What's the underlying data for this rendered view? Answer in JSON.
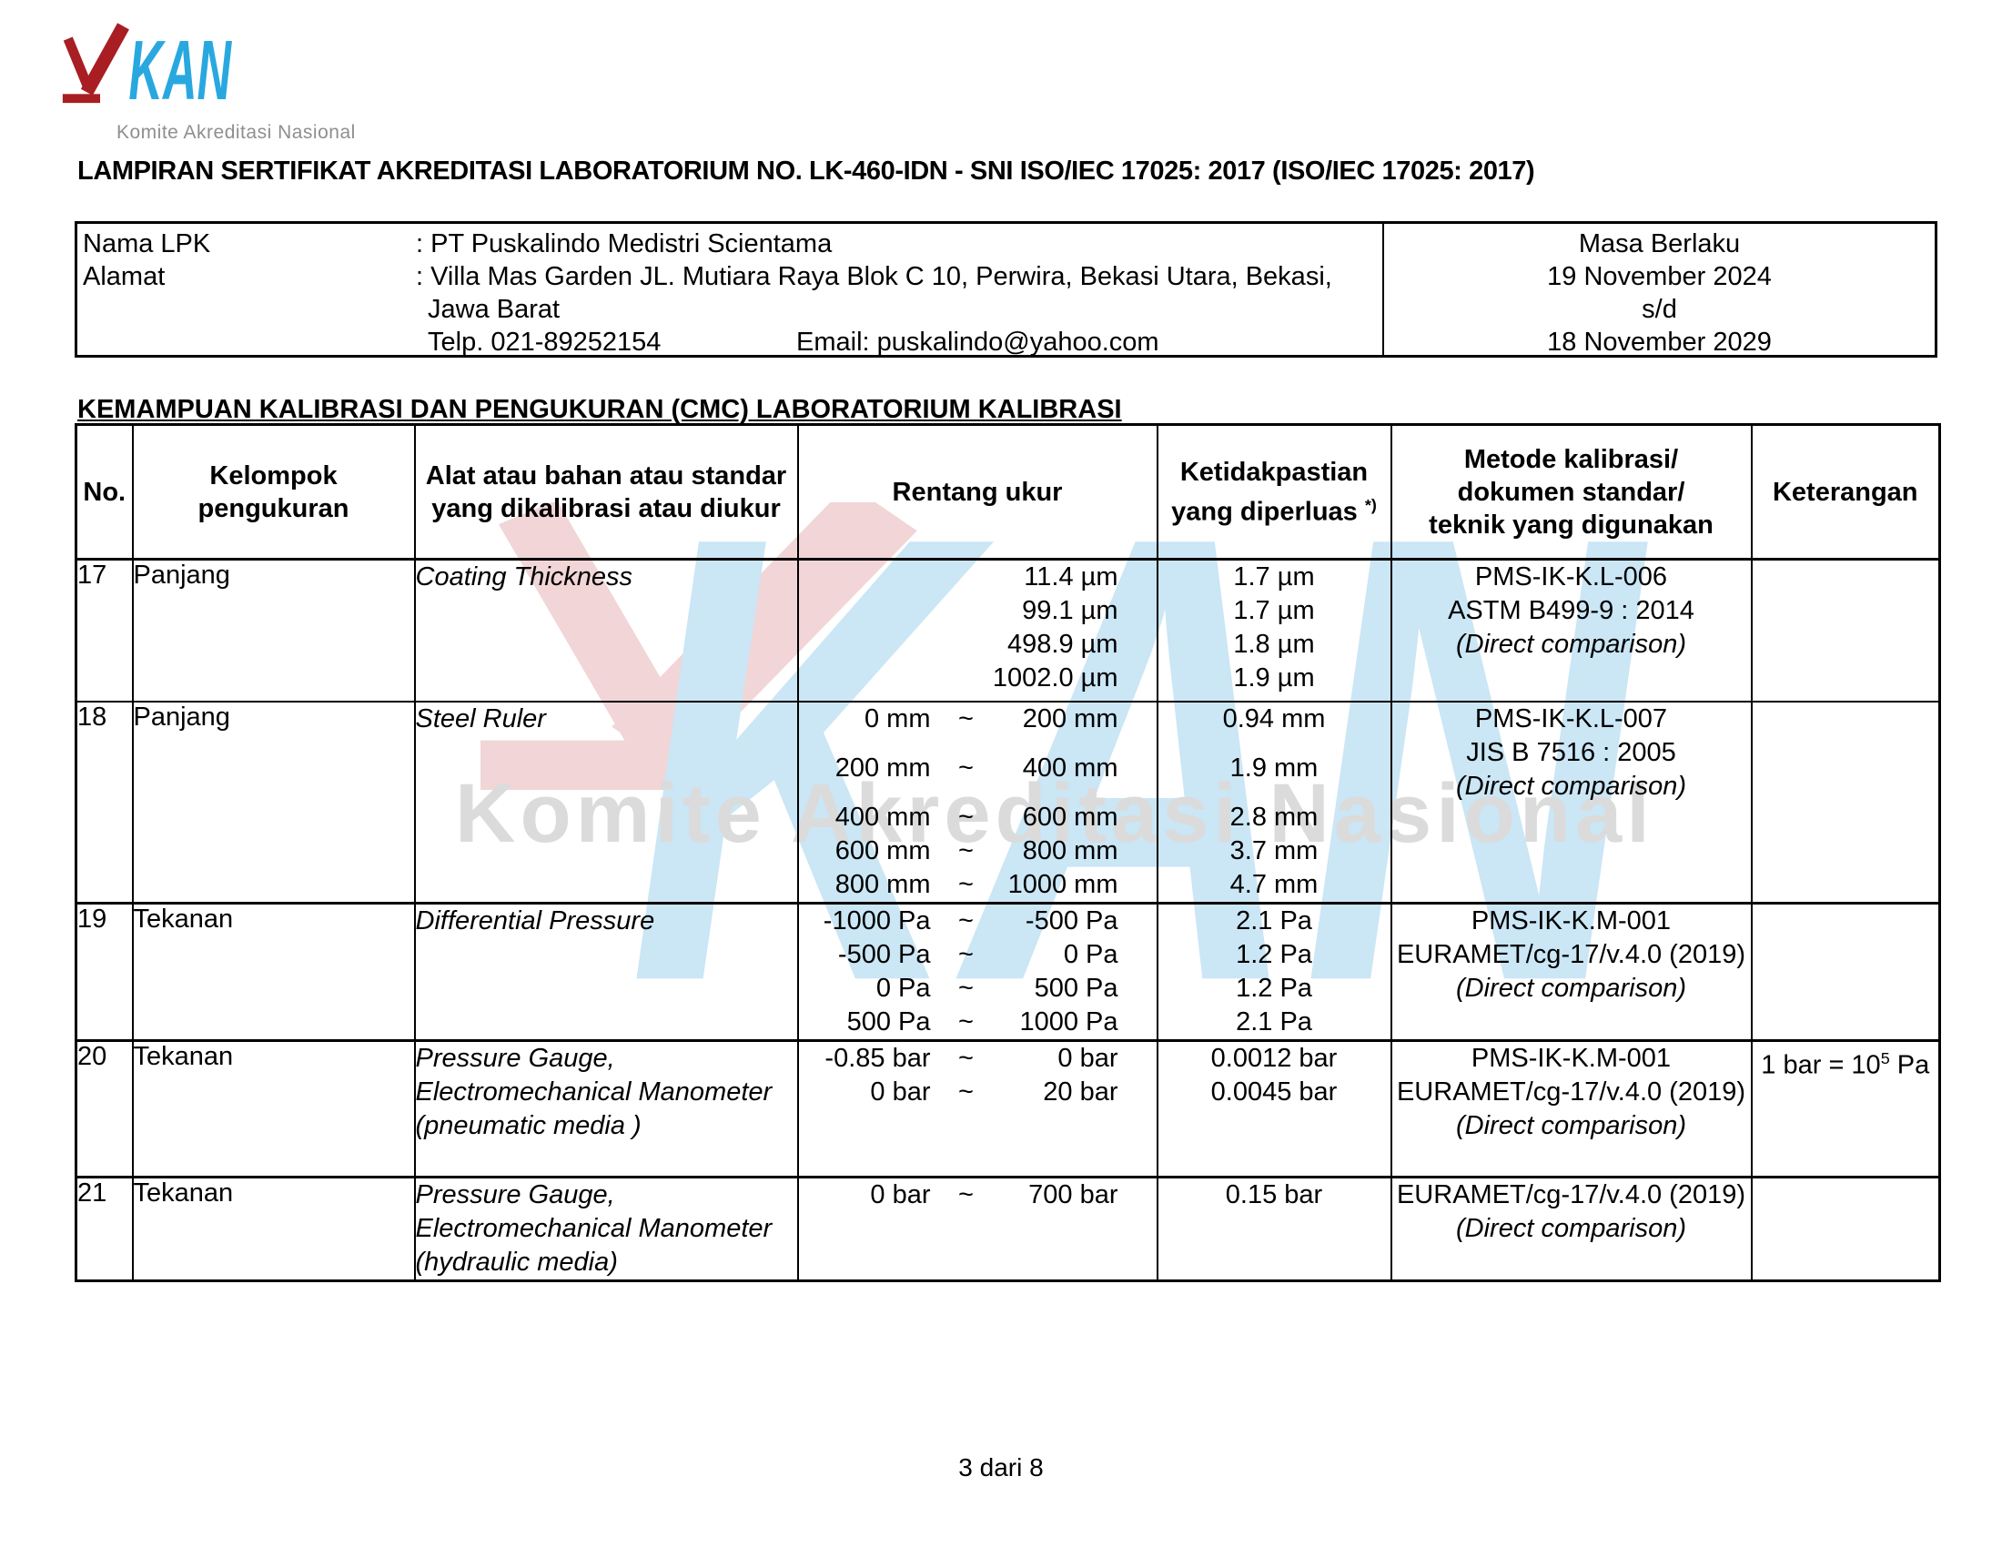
{
  "logo": {
    "kan": "KAN",
    "subtitle": "Komite Akreditasi Nasional"
  },
  "title": "LAMPIRAN SERTIFIKAT AKREDITASI LABORATORIUM NO. LK-460-IDN - SNI ISO/IEC 17025: 2017 (ISO/IEC 17025: 2017)",
  "info_box": {
    "nama_lpk_label": "Nama LPK",
    "nama_lpk_value": ": PT Puskalindo Medistri Scientama",
    "alamat_label": "Alamat",
    "alamat_value": ": Villa Mas Garden JL. Mutiara Raya Blok C 10, Perwira, Bekasi Utara, Bekasi,",
    "alamat_line2": "Jawa Barat",
    "telp": "Telp. 021-89252154",
    "email": "Email: puskalindo@yahoo.com",
    "masa_berlaku_label": "Masa Berlaku",
    "valid_from": "19 November 2024",
    "sd": "s/d",
    "valid_to": "18 November 2029"
  },
  "section_heading": "KEMAMPUAN KALIBRASI DAN PENGUKURAN (CMC) LABORATORIUM KALIBRASI",
  "watermark": {
    "kan": "KAN",
    "subtitle": "Komite Akreditasi Nasional"
  },
  "table": {
    "headers": {
      "no": "No.",
      "kelompok": [
        "Kelompok",
        "pengukuran"
      ],
      "alat": [
        "Alat atau bahan atau standar",
        "yang dikalibrasi atau diukur"
      ],
      "rentang": "Rentang ukur",
      "ketidakpastian": {
        "lines": [
          "Ketidakpastian",
          "yang diperluas"
        ],
        "sup": "*)"
      },
      "metode": [
        "Metode kalibrasi/",
        "dokumen standar/",
        "teknik yang digunakan"
      ],
      "keterangan": "Keterangan"
    },
    "rows": [
      {
        "no": "17",
        "kelompok": "Panjang",
        "alat": [
          "Coating Thickness"
        ],
        "rentang": [
          {
            "single": "11.4 µm"
          },
          {
            "single": "99.1 µm"
          },
          {
            "single": "498.9 µm"
          },
          {
            "single": "1002.0 µm"
          }
        ],
        "ketidakpastian": [
          "1.7 µm",
          "1.7 µm",
          "1.8 µm",
          "1.9 µm"
        ],
        "metode": [
          {
            "text": "PMS-IK-K.L-006"
          },
          {
            "text": "ASTM B499-9 : 2014"
          },
          {
            "text": "(Direct comparison)",
            "italic": true
          }
        ],
        "keterangan": null
      },
      {
        "no": "18",
        "kelompok": "Panjang",
        "alat": [
          "Steel Ruler"
        ],
        "rentang": [
          {
            "from": "0 mm",
            "to": "200 mm"
          },
          {
            "from": "200 mm",
            "to": "400 mm"
          },
          {
            "from": "400 mm",
            "to": "600 mm"
          },
          {
            "from": "600 mm",
            "to": "800 mm"
          },
          {
            "from": "800 mm",
            "to": "1000 mm"
          }
        ],
        "ketidakpastian": [
          "0.94 mm",
          "1.9 mm",
          "2.8 mm",
          "3.7 mm",
          "4.7 mm"
        ],
        "metode": [
          {
            "text": "PMS-IK-K.L-007"
          },
          {
            "text": "JIS B 7516 : 2005"
          },
          {
            "text": "(Direct comparison)",
            "italic": true
          }
        ],
        "keterangan": null
      },
      {
        "no": "19",
        "kelompok": "Tekanan",
        "alat": [
          "Differential Pressure"
        ],
        "rentang": [
          {
            "from": "-1000 Pa",
            "to": "-500 Pa"
          },
          {
            "from": "-500 Pa",
            "to": "0 Pa"
          },
          {
            "from": "0 Pa",
            "to": "500 Pa"
          },
          {
            "from": "500 Pa",
            "to": "1000 Pa"
          }
        ],
        "ketidakpastian": [
          "2.1 Pa",
          "1.2 Pa",
          "1.2 Pa",
          "2.1 Pa"
        ],
        "metode": [
          {
            "text": "PMS-IK-K.M-001"
          },
          {
            "text": "EURAMET/cg-17/v.4.0  (2019)"
          },
          {
            "text": "(Direct comparison)",
            "italic": true
          }
        ],
        "keterangan": null
      },
      {
        "no": "20",
        "kelompok": "Tekanan",
        "alat": [
          "Pressure Gauge,",
          "Electromechanical Manometer",
          "(pneumatic media )"
        ],
        "rentang": [
          {
            "from": "-0.85 bar",
            "to": "0 bar"
          },
          {
            "from": "0 bar",
            "to": "20 bar"
          }
        ],
        "ketidakpastian": [
          "0.0012 bar",
          "0.0045 bar"
        ],
        "metode": [
          {
            "text": "PMS-IK-K.M-001"
          },
          {
            "text": "EURAMET/cg-17/v.4.0  (2019)"
          },
          {
            "text": "(Direct comparison)",
            "italic": true
          }
        ],
        "keterangan": {
          "pre": "1 bar = 10",
          "sup": "5",
          "post": " Pa"
        }
      },
      {
        "no": "21",
        "kelompok": "Tekanan",
        "alat": [
          "Pressure Gauge,",
          "Electromechanical Manometer",
          "(hydraulic media)"
        ],
        "rentang": [
          {
            "from": "0 bar",
            "to": "700 bar"
          }
        ],
        "ketidakpastian": [
          "0.15 bar"
        ],
        "metode": [
          {
            "text": "EURAMET/cg-17/v.4.0  (2019)"
          },
          {
            "text": "(Direct comparison)",
            "italic": true
          }
        ],
        "keterangan": null
      }
    ]
  },
  "footer": {
    "page": "3 dari 8"
  },
  "colors": {
    "logo_red": "#a81e22",
    "logo_blue": "#29a8e0",
    "logo_gray": "#8f8f8f",
    "wm_red": "#f1d5d7",
    "wm_blue": "#cbe6f5",
    "wm_gray": "#dbdbdb"
  }
}
